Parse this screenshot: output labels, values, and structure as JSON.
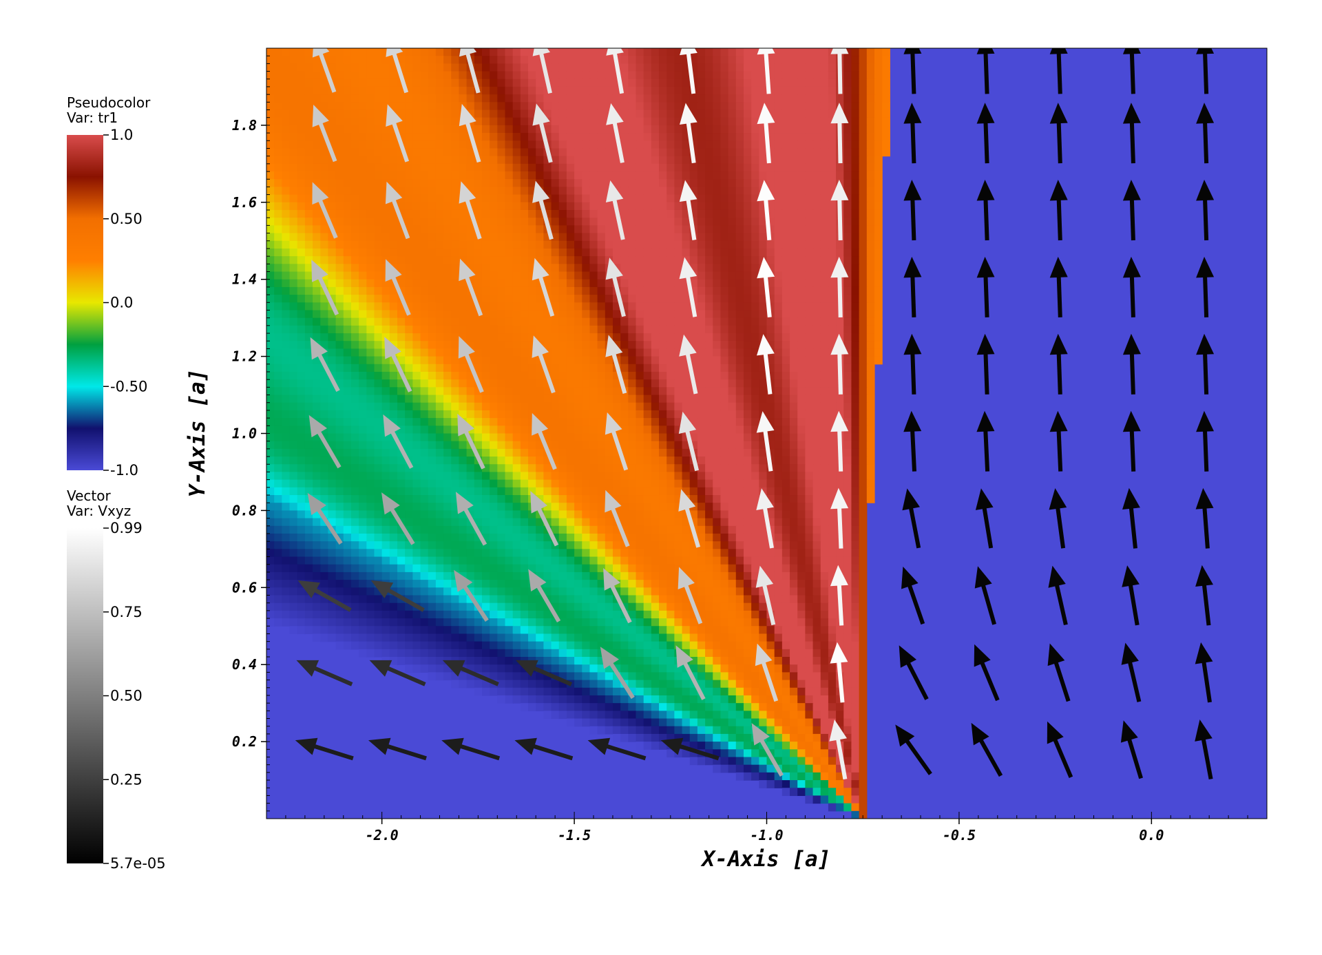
{
  "chart_data": {
    "type": "heatmap",
    "title": "",
    "xlabel": "X-Axis [a]",
    "ylabel": "Y-Axis [a]",
    "xlim": [
      -2.3,
      0.3
    ],
    "ylim": [
      0.0,
      2.0
    ],
    "x_ticks": [
      -2.0,
      -1.5,
      -1.0,
      -0.5,
      0.0
    ],
    "x_tick_labels": [
      "-2.0",
      "-1.5",
      "-1.0",
      "-0.5",
      "0.0"
    ],
    "y_ticks": [
      0.2,
      0.4,
      0.6,
      0.8,
      1.0,
      1.2,
      1.4,
      1.6,
      1.8
    ],
    "y_tick_labels": [
      "0.2",
      "0.4",
      "0.6",
      "0.8",
      "1.0",
      "1.2",
      "1.4",
      "1.6",
      "1.8"
    ],
    "grid": false,
    "pseudocolor": {
      "legend_title": "Pseudocolor",
      "legend_var": "Var: tr1",
      "min": -1.0,
      "max": 1.0,
      "tick_labels": [
        "1.0",
        "0.50",
        "0.0",
        "-0.50",
        "-1.0"
      ],
      "colormap": [
        "#4a4ad6",
        "#11116e",
        "#00e8e8",
        "#00a040",
        "#e8e800",
        "#ff7f00",
        "#f26f00",
        "#8a1200",
        "#d94c4c"
      ],
      "field_description": "jet-like fan from source near x=-0.75, y=0; outflow rays between directions 110 and 160 degrees; value +1 at core, -1 background"
    },
    "vector": {
      "legend_title": "Vector",
      "legend_var": "Var: Vxyz",
      "min": 5.7e-05,
      "max": 0.99,
      "tick_labels": [
        "0.99",
        "0.75",
        "0.50",
        "0.25",
        "5.7e-05"
      ],
      "grid_x": [
        -2.15,
        -1.96,
        -1.77,
        -1.58,
        -1.39,
        -1.2,
        -1.0,
        -0.81,
        -0.62,
        -0.43,
        -0.24,
        -0.05,
        0.14
      ],
      "grid_y": [
        0.18,
        0.38,
        0.58,
        0.78,
        0.98,
        1.18,
        1.38,
        1.58,
        1.78,
        1.96
      ],
      "description": "velocity arrows pointing up-left outside the jet, upward inside the jet; magnitude near 0.99 in the jet core, near 0 in the ambient region"
    }
  }
}
